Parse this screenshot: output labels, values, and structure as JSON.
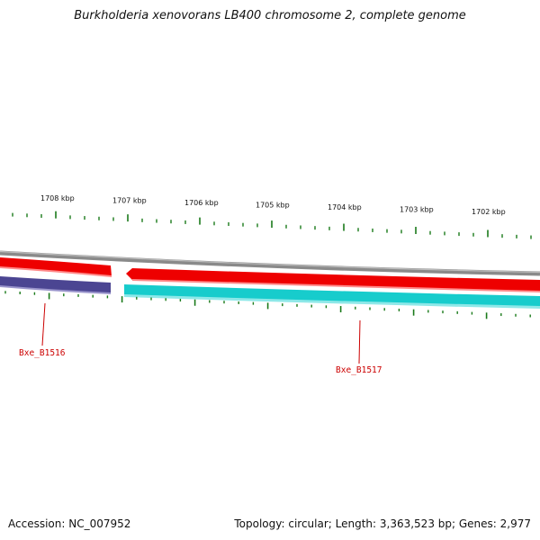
{
  "title": "Burkholderia xenovorans LB400 chromosome 2, complete genome",
  "footer": {
    "accession": "Accession: NC_007952",
    "summary": "Topology: circular; Length: 3,363,523 bp; Genes: 2,977"
  },
  "colors": {
    "backbone": "#888888",
    "forward_genes": "#ee0000",
    "reverse_gene_1": "#4b4592",
    "reverse_gene_2": "#17cccc",
    "ticks": "#1a7a1a",
    "gene_labels": "#cc0000"
  },
  "axis": {
    "tick_labels": [
      "1708 kbp",
      "1707 kbp",
      "1706 kbp",
      "1705 kbp",
      "1704 kbp",
      "1703 kbp",
      "1702 kbp"
    ]
  },
  "genes": [
    {
      "name": "Bxe_B1516",
      "strand": "reverse"
    },
    {
      "name": "Bxe_B1517",
      "strand": "reverse"
    }
  ]
}
